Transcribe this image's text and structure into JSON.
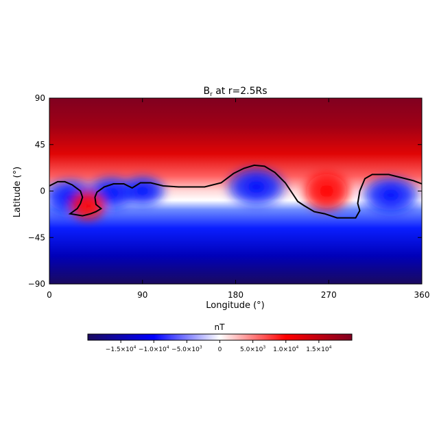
{
  "chart_data": {
    "type": "heatmap",
    "title_main": "B",
    "title_sub": "r",
    "title_rest": " at r=2.5Rs",
    "xlabel": "Longitude (°)",
    "ylabel": "Latitude (°)",
    "xlim": [
      0,
      360
    ],
    "ylim": [
      -90,
      90
    ],
    "xticks": [
      0,
      90,
      180,
      270,
      360
    ],
    "yticks": [
      -90,
      -45,
      0,
      45,
      90
    ],
    "x_tick_labels": [
      "0",
      "90",
      "180",
      "270",
      "360"
    ],
    "y_tick_labels": [
      "−90",
      "−45",
      "0",
      "45",
      "90"
    ],
    "colorbar": {
      "label": "nT",
      "range": [
        -20000,
        20000
      ],
      "ticks": [
        -15000,
        -10000,
        -5000,
        0,
        5000,
        10000,
        15000
      ],
      "tick_labels": [
        {
          "mant": "−1.5×10",
          "exp": "4"
        },
        {
          "mant": "−1.0×10",
          "exp": "4"
        },
        {
          "mant": "−5.0×10",
          "exp": "3"
        },
        {
          "mant": "0",
          "exp": ""
        },
        {
          "mant": "5.0×10",
          "exp": "3"
        },
        {
          "mant": "1.0×10",
          "exp": "4"
        },
        {
          "mant": "1.5×10",
          "exp": "4"
        }
      ],
      "colors": [
        "#1a0a5e",
        "#0000ff",
        "#ffffff",
        "#ff0000",
        "#800020"
      ]
    },
    "field": {
      "north_pole_value": 20000,
      "south_pole_value": -20000,
      "polarity_inversion_line": [
        [
          0,
          5
        ],
        [
          8,
          9
        ],
        [
          15,
          9
        ],
        [
          22,
          6
        ],
        [
          30,
          0
        ],
        [
          32,
          -6
        ],
        [
          30,
          -12
        ],
        [
          27,
          -17
        ],
        [
          20,
          -22
        ],
        [
          32,
          -24
        ],
        [
          40,
          -22
        ],
        [
          45,
          -20
        ],
        [
          50,
          -17
        ],
        [
          45,
          -13
        ],
        [
          44,
          -6
        ],
        [
          46,
          -1
        ],
        [
          53,
          4
        ],
        [
          62,
          7
        ],
        [
          72,
          7
        ],
        [
          80,
          3
        ],
        [
          88,
          8
        ],
        [
          98,
          8
        ],
        [
          110,
          5
        ],
        [
          125,
          4
        ],
        [
          150,
          4
        ],
        [
          166,
          8
        ],
        [
          178,
          17
        ],
        [
          188,
          22
        ],
        [
          198,
          25
        ],
        [
          208,
          24
        ],
        [
          218,
          18
        ],
        [
          228,
          8
        ],
        [
          236,
          -4
        ],
        [
          240,
          -10
        ],
        [
          246,
          -14
        ],
        [
          256,
          -20
        ],
        [
          266,
          -22
        ],
        [
          278,
          -26
        ],
        [
          290,
          -26
        ],
        [
          296,
          -26
        ],
        [
          300,
          -19
        ],
        [
          298,
          -12
        ],
        [
          300,
          0
        ],
        [
          305,
          12
        ],
        [
          312,
          16
        ],
        [
          328,
          16
        ],
        [
          340,
          13
        ],
        [
          352,
          10
        ],
        [
          360,
          7
        ]
      ],
      "negative_lobes": [
        {
          "lon": 20,
          "lat": -6,
          "strength": 0.9
        },
        {
          "lon": 60,
          "lat": -2,
          "strength": 0.8
        },
        {
          "lon": 90,
          "lat": 0,
          "strength": 0.7
        },
        {
          "lon": 200,
          "lat": 4,
          "strength": 1.0
        },
        {
          "lon": 330,
          "lat": -4,
          "strength": 0.95
        }
      ],
      "positive_lobes": [
        {
          "lon": 37,
          "lat": -14,
          "strength": 0.7
        },
        {
          "lon": 268,
          "lat": 0,
          "strength": 1.0
        }
      ]
    }
  }
}
